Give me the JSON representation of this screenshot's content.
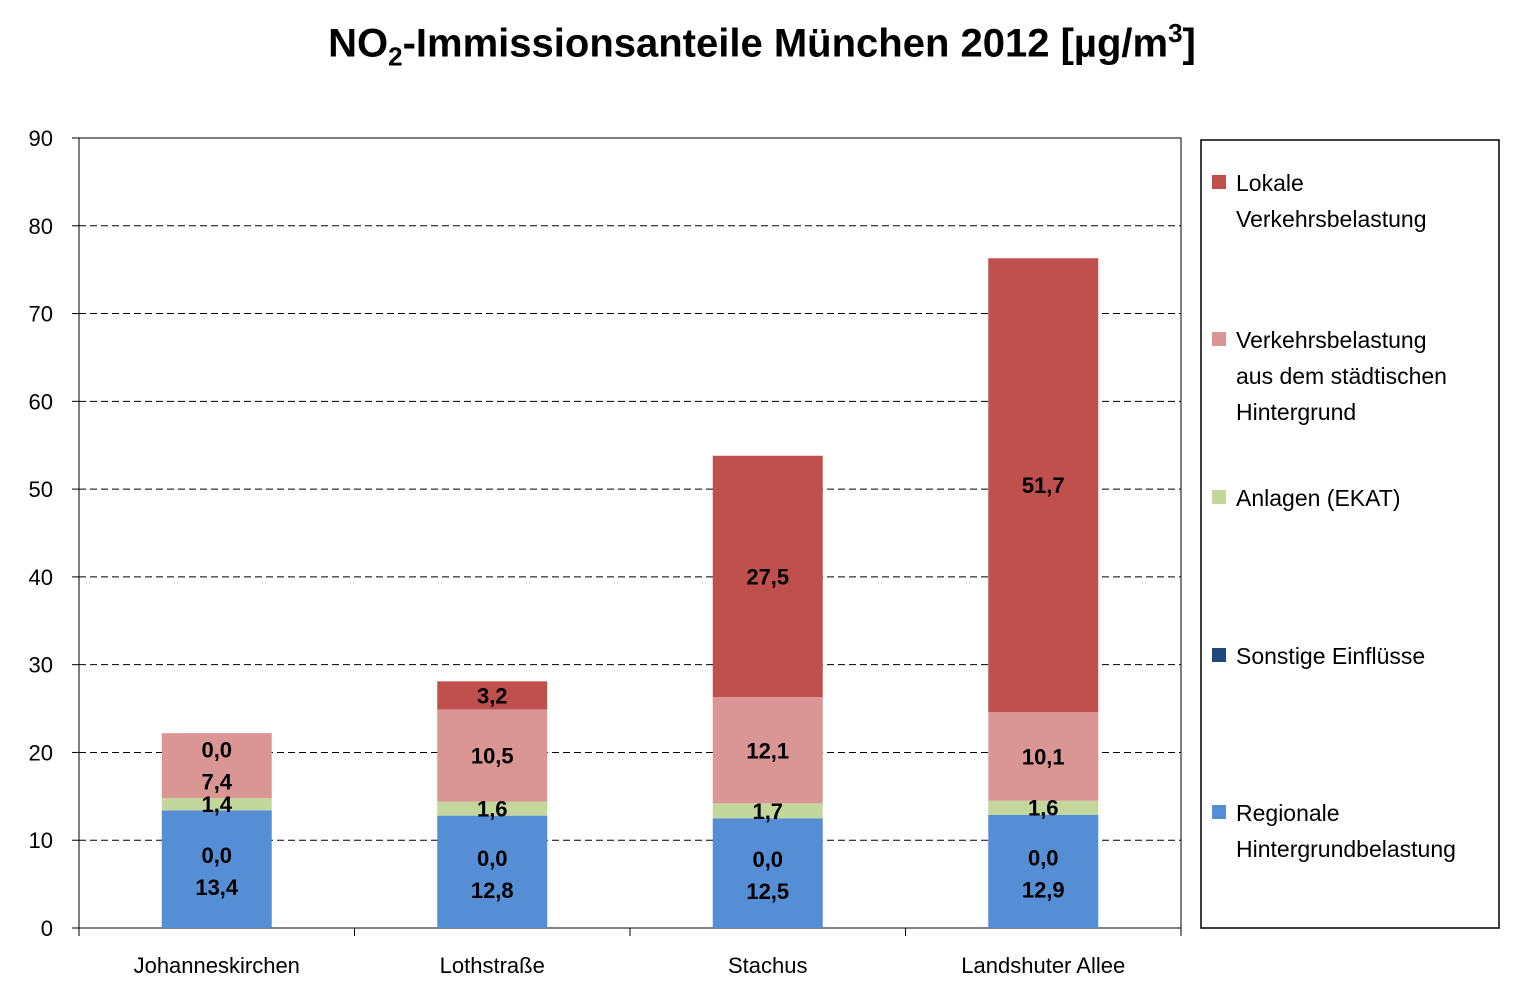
{
  "title": {
    "prefix": "NO",
    "sub": "2",
    "middle": "-Immissionsanteile München 2012 [µg/m",
    "sup": "3",
    "suffix": "]"
  },
  "chart_data": {
    "type": "bar",
    "stacked": true,
    "title": "NO2-Immissionsanteile München 2012 [µg/m³]",
    "categories": [
      "Johanneskirchen",
      "Lothstraße",
      "Stachus",
      "Landshuter Allee"
    ],
    "ylim": [
      0,
      90
    ],
    "yticks": [
      0,
      10,
      20,
      30,
      40,
      50,
      60,
      70,
      80,
      90
    ],
    "grid": true,
    "legend_position": "right",
    "series": [
      {
        "name": "Regionale Hintergrundbelastung",
        "legend_lines": [
          "Regionale",
          "Hintergrundbelastung"
        ],
        "color": "#558ED5",
        "values": [
          13.4,
          12.8,
          12.5,
          12.9
        ],
        "labels": [
          "13,4",
          "12,8",
          "12,5",
          "12,9"
        ]
      },
      {
        "name": "Sonstige Einflüsse",
        "legend_lines": [
          "Sonstige Einflüsse"
        ],
        "color": "#1F497D",
        "values": [
          0.0,
          0.0,
          0.0,
          0.0
        ],
        "labels": [
          "0,0",
          "0,0",
          "0,0",
          "0,0"
        ]
      },
      {
        "name": "Anlagen (EKAT)",
        "legend_lines": [
          "Anlagen (EKAT)"
        ],
        "color": "#C3D69B",
        "values": [
          1.4,
          1.6,
          1.7,
          1.6
        ],
        "labels": [
          "1,4",
          "1,6",
          "1,7",
          "1,6"
        ]
      },
      {
        "name": "Verkehrsbelastung aus dem städtischen Hintergrund",
        "legend_lines": [
          "Verkehrsbelastung",
          "aus dem städtischen",
          "Hintergrund"
        ],
        "color": "#D99694",
        "values": [
          7.4,
          10.5,
          12.1,
          10.1
        ],
        "labels": [
          "7,4",
          "10,5",
          "12,1",
          "10,1"
        ]
      },
      {
        "name": "Lokale Verkehrsbelastung",
        "legend_lines": [
          "Lokale",
          "Verkehrsbelastung"
        ],
        "color": "#C0504D",
        "values": [
          0.0,
          3.2,
          27.5,
          51.7
        ],
        "labels": [
          "0,0",
          "3,2",
          "27,5",
          "51,7"
        ]
      }
    ]
  }
}
